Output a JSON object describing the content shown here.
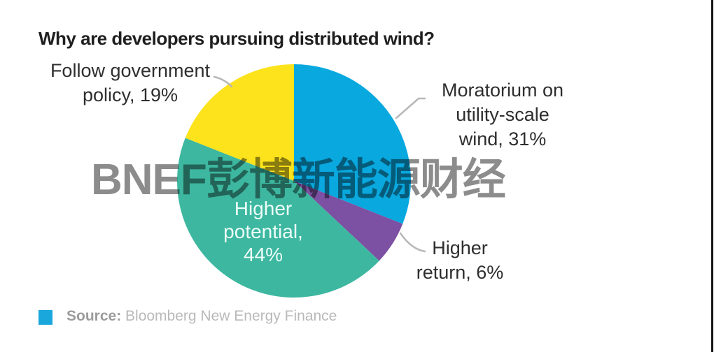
{
  "title": "Why are developers pursuing distributed wind?",
  "watermark": "BNEF彭博新能源财经",
  "chart_data": {
    "type": "pie",
    "title": "Why are developers pursuing distributed wind?",
    "start_angle_deg": 0,
    "direction": "clockwise",
    "slices": [
      {
        "label": "Moratorium on utility-scale wind",
        "value": 31,
        "color": "#09a8df"
      },
      {
        "label": "Higher return",
        "value": 6,
        "color": "#7c50a2"
      },
      {
        "label": "Higher potential",
        "value": 44,
        "color": "#3db7a0"
      },
      {
        "label": "Follow government policy",
        "value": 19,
        "color": "#fce31c"
      }
    ],
    "legend_position": "none",
    "labels_on_chart": true
  },
  "callouts": {
    "follow_government": {
      "line1": "Follow government",
      "line2": "policy, 19%"
    },
    "moratorium": {
      "line1": "Moratorium on",
      "line2": "utility-scale",
      "line3": "wind, 31%"
    },
    "higher_return": {
      "line1": "Higher",
      "line2": "return, 6%"
    },
    "higher_potential": {
      "line1": "Higher",
      "line2": "potential,",
      "line3": "44%"
    }
  },
  "source": {
    "label": "Source:",
    "text": " Bloomberg New Energy Finance",
    "square_color": "#1aa7dc"
  },
  "colors": {
    "blue": "#09a8df",
    "purple": "#7c50a2",
    "teal": "#3db7a0",
    "yellow": "#fce31c",
    "watermark_gray": "#8c8c8c",
    "leader_line": "#b8b8b8"
  }
}
